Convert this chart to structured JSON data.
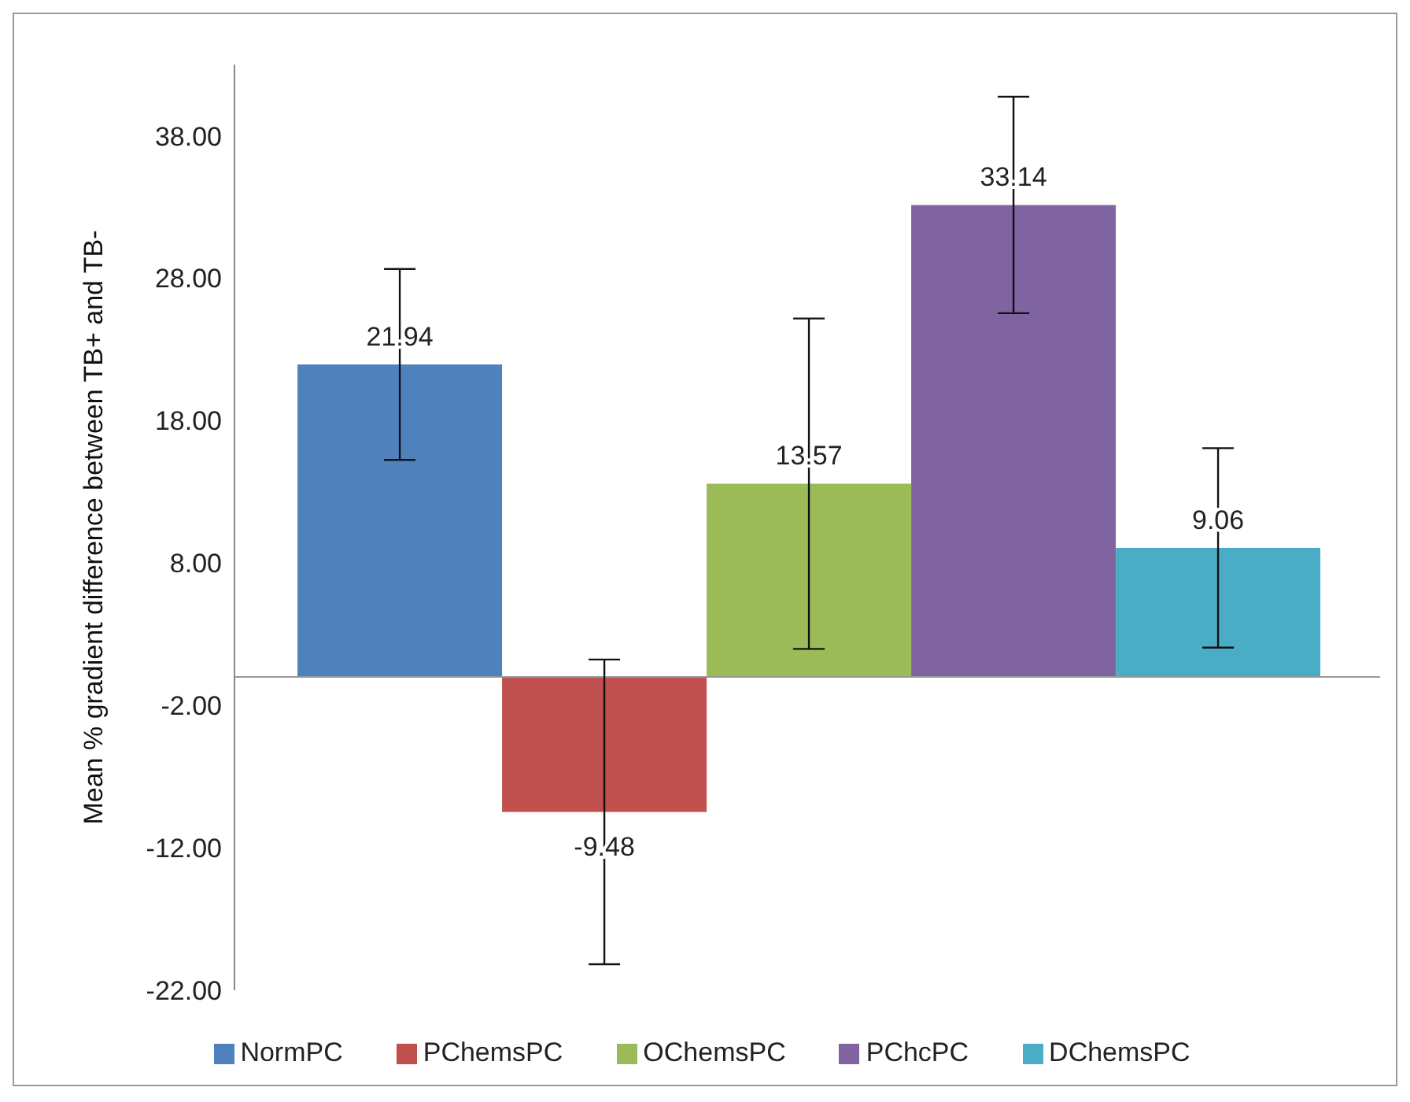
{
  "chart_data": {
    "type": "bar",
    "ylabel": "Mean % gradient difference between TB+ and TB-",
    "categories": [
      null
    ],
    "series": [
      {
        "name": "NormPC",
        "color": "#4f81bd",
        "values": [
          21.94
        ],
        "errors": [
          6.7
        ]
      },
      {
        "name": "PChemsPC",
        "color": "#c0504d",
        "values": [
          -9.48
        ],
        "errors": [
          10.7
        ]
      },
      {
        "name": "OChemsPC",
        "color": "#9bbb59",
        "values": [
          13.57
        ],
        "errors": [
          11.6
        ]
      },
      {
        "name": "PChcPC",
        "color": "#8064a2",
        "values": [
          33.14
        ],
        "errors": [
          7.6
        ]
      },
      {
        "name": "DChemsPC",
        "color": "#4bacc6",
        "values": [
          9.06
        ],
        "errors": [
          7.0
        ]
      }
    ],
    "ylim": [
      -22,
      43
    ],
    "yticks": [
      {
        "value": -22,
        "label": "-22.00"
      },
      {
        "value": -12,
        "label": "-12.00"
      },
      {
        "value": -2,
        "label": "-2.00"
      },
      {
        "value": 8,
        "label": "8.00"
      },
      {
        "value": 18,
        "label": "18.00"
      },
      {
        "value": 28,
        "label": "28.00"
      },
      {
        "value": 38,
        "label": "38.00"
      }
    ],
    "data_labels": true,
    "grid": false,
    "legend": "bottom"
  }
}
